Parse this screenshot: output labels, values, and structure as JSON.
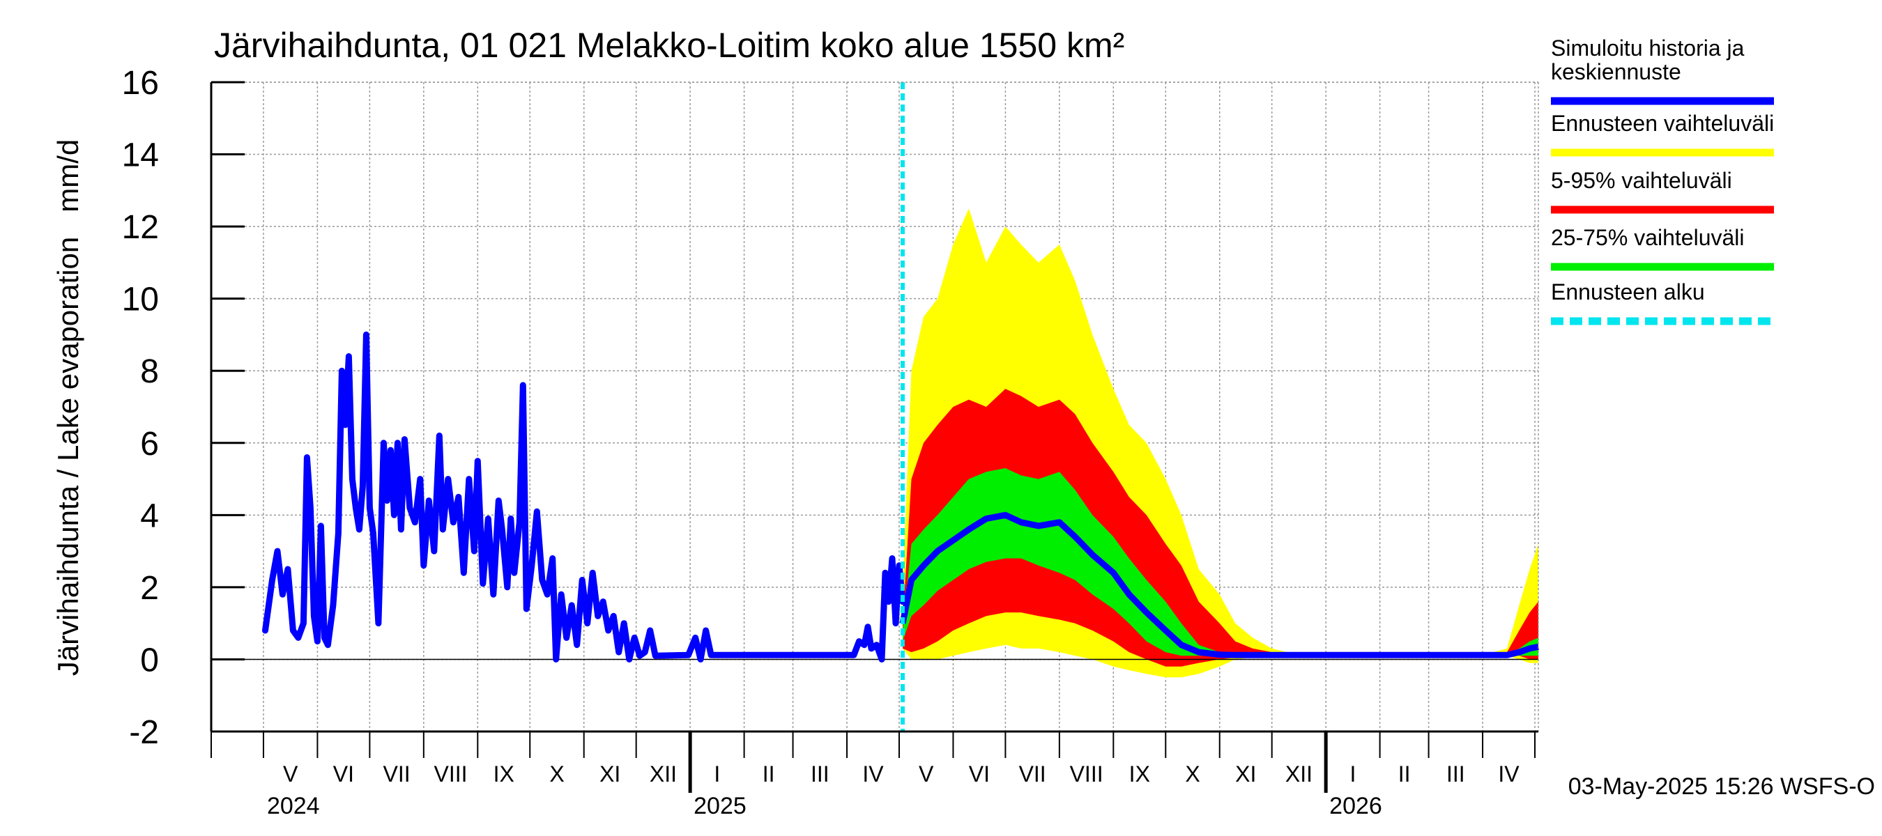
{
  "chart_data": {
    "type": "area",
    "title": "Järvihaihdunta, 01 021 Melakko-Loitim koko alue 1550 km²",
    "ylabel": "Järvihaihdunta / Lake evaporation   mm/d",
    "ylim": [
      -2,
      16
    ],
    "yticks": [
      "-2",
      "0",
      "2",
      "4",
      "6",
      "8",
      "10",
      "12",
      "14",
      "16"
    ],
    "x_range": [
      "2024-04-01",
      "2026-05-03"
    ],
    "forecast_start": "2025-05-03",
    "month_labels": [
      "V",
      "VI",
      "VII",
      "VIII",
      "IX",
      "X",
      "XI",
      "XII",
      "I",
      "II",
      "III",
      "IV",
      "V",
      "VI",
      "VII",
      "VIII",
      "IX",
      "X",
      "XI",
      "XII",
      "I",
      "II",
      "III",
      "IV"
    ],
    "year_labels": [
      "2024",
      "2025",
      "2026"
    ],
    "grid": true,
    "legend_position": "right",
    "timestamp": "03-May-2025 15:26 WSFS-O",
    "colors": {
      "median": "#0000ff",
      "range": "#ffff00",
      "p5_95": "#ff0000",
      "p25_75": "#00ee00",
      "forecast_start": "#00e5ee"
    },
    "legend": [
      {
        "label_lines": [
          "Simuloitu historia ja",
          "keskiennuste"
        ],
        "color": "#0000ff",
        "style": "solid"
      },
      {
        "label_lines": [
          "Ennusteen vaihteluväli"
        ],
        "color": "#ffff00",
        "style": "solid"
      },
      {
        "label_lines": [
          "5-95% vaihteluväli"
        ],
        "color": "#ff0000",
        "style": "solid"
      },
      {
        "label_lines": [
          "25-75% vaihteluväli"
        ],
        "color": "#00ee00",
        "style": "solid"
      },
      {
        "label_lines": [
          "Ennusteen alku"
        ],
        "color": "#00e5ee",
        "style": "dashed"
      }
    ],
    "history": {
      "name": "Simuloitu historia ja keskiennuste",
      "points": [
        [
          "2024-05-02",
          0.8
        ],
        [
          "2024-05-06",
          2.2
        ],
        [
          "2024-05-09",
          3.0
        ],
        [
          "2024-05-12",
          1.8
        ],
        [
          "2024-05-15",
          2.5
        ],
        [
          "2024-05-18",
          0.8
        ],
        [
          "2024-05-21",
          0.6
        ],
        [
          "2024-05-24",
          1.0
        ],
        [
          "2024-05-26",
          5.6
        ],
        [
          "2024-05-28",
          4.2
        ],
        [
          "2024-05-30",
          1.2
        ],
        [
          "2024-06-01",
          0.5
        ],
        [
          "2024-06-03",
          3.7
        ],
        [
          "2024-06-05",
          0.6
        ],
        [
          "2024-06-07",
          0.4
        ],
        [
          "2024-06-10",
          1.5
        ],
        [
          "2024-06-13",
          3.5
        ],
        [
          "2024-06-15",
          8.0
        ],
        [
          "2024-06-17",
          6.5
        ],
        [
          "2024-06-19",
          8.4
        ],
        [
          "2024-06-21",
          5.0
        ],
        [
          "2024-06-23",
          4.2
        ],
        [
          "2024-06-25",
          3.6
        ],
        [
          "2024-06-27",
          4.8
        ],
        [
          "2024-06-29",
          9.0
        ],
        [
          "2024-07-01",
          4.2
        ],
        [
          "2024-07-03",
          3.5
        ],
        [
          "2024-07-06",
          1.0
        ],
        [
          "2024-07-09",
          6.0
        ],
        [
          "2024-07-11",
          4.4
        ],
        [
          "2024-07-13",
          5.8
        ],
        [
          "2024-07-15",
          4.0
        ],
        [
          "2024-07-17",
          6.0
        ],
        [
          "2024-07-19",
          3.6
        ],
        [
          "2024-07-21",
          6.1
        ],
        [
          "2024-07-24",
          4.2
        ],
        [
          "2024-07-27",
          3.8
        ],
        [
          "2024-07-30",
          5.0
        ],
        [
          "2024-08-01",
          2.6
        ],
        [
          "2024-08-04",
          4.4
        ],
        [
          "2024-08-07",
          3.0
        ],
        [
          "2024-08-10",
          6.2
        ],
        [
          "2024-08-12",
          3.6
        ],
        [
          "2024-08-15",
          5.0
        ],
        [
          "2024-08-18",
          3.8
        ],
        [
          "2024-08-21",
          4.5
        ],
        [
          "2024-08-24",
          2.4
        ],
        [
          "2024-08-27",
          5.0
        ],
        [
          "2024-08-30",
          3.0
        ],
        [
          "2024-09-01",
          5.5
        ],
        [
          "2024-09-04",
          2.1
        ],
        [
          "2024-09-07",
          3.9
        ],
        [
          "2024-09-10",
          1.8
        ],
        [
          "2024-09-13",
          4.4
        ],
        [
          "2024-09-15",
          3.6
        ],
        [
          "2024-09-18",
          2.0
        ],
        [
          "2024-09-20",
          3.9
        ],
        [
          "2024-09-22",
          2.4
        ],
        [
          "2024-09-25",
          3.8
        ],
        [
          "2024-09-27",
          7.6
        ],
        [
          "2024-09-29",
          1.4
        ],
        [
          "2024-10-02",
          2.6
        ],
        [
          "2024-10-05",
          4.1
        ],
        [
          "2024-10-08",
          2.2
        ],
        [
          "2024-10-11",
          1.8
        ],
        [
          "2024-10-14",
          2.8
        ],
        [
          "2024-10-16",
          0.0
        ],
        [
          "2024-10-19",
          1.8
        ],
        [
          "2024-10-22",
          0.6
        ],
        [
          "2024-10-25",
          1.5
        ],
        [
          "2024-10-28",
          0.4
        ],
        [
          "2024-10-31",
          2.2
        ],
        [
          "2024-11-03",
          1.0
        ],
        [
          "2024-11-06",
          2.4
        ],
        [
          "2024-11-09",
          1.2
        ],
        [
          "2024-11-12",
          1.6
        ],
        [
          "2024-11-15",
          0.8
        ],
        [
          "2024-11-18",
          1.2
        ],
        [
          "2024-11-21",
          0.2
        ],
        [
          "2024-11-24",
          1.0
        ],
        [
          "2024-11-27",
          0.0
        ],
        [
          "2024-11-30",
          0.6
        ],
        [
          "2024-12-03",
          0.1
        ],
        [
          "2024-12-06",
          0.2
        ],
        [
          "2024-12-09",
          0.8
        ],
        [
          "2024-12-12",
          0.1
        ],
        [
          "2024-12-31",
          0.12
        ],
        [
          "2025-01-04",
          0.6
        ],
        [
          "2025-01-07",
          0.0
        ],
        [
          "2025-01-10",
          0.8
        ],
        [
          "2025-01-13",
          0.12
        ],
        [
          "2025-04-05",
          0.12
        ],
        [
          "2025-04-08",
          0.5
        ],
        [
          "2025-04-11",
          0.4
        ],
        [
          "2025-04-13",
          0.9
        ],
        [
          "2025-04-15",
          0.3
        ],
        [
          "2025-04-18",
          0.4
        ],
        [
          "2025-04-21",
          0.0
        ],
        [
          "2025-04-23",
          2.4
        ],
        [
          "2025-04-25",
          1.6
        ],
        [
          "2025-04-27",
          2.8
        ],
        [
          "2025-04-29",
          1.0
        ],
        [
          "2025-05-01",
          2.6
        ],
        [
          "2025-05-03",
          1.6
        ]
      ]
    },
    "forecast_dates": [
      "2025-05-03",
      "2025-05-08",
      "2025-05-15",
      "2025-05-23",
      "2025-06-01",
      "2025-06-10",
      "2025-06-20",
      "2025-07-01",
      "2025-07-10",
      "2025-07-20",
      "2025-08-01",
      "2025-08-10",
      "2025-08-20",
      "2025-09-01",
      "2025-09-10",
      "2025-09-20",
      "2025-10-01",
      "2025-10-10",
      "2025-10-20",
      "2025-11-01",
      "2025-11-10",
      "2025-11-20",
      "2025-12-01",
      "2025-12-10",
      "2025-12-20",
      "2026-01-01",
      "2026-02-01",
      "2026-03-01",
      "2026-04-01",
      "2026-04-15",
      "2026-04-22",
      "2026-04-28",
      "2026-05-03"
    ],
    "series": [
      {
        "name": "Ennusteen vaihteluväli",
        "upper": [
          2.0,
          8.0,
          9.5,
          10.0,
          11.5,
          12.5,
          11.0,
          12.0,
          11.5,
          11.0,
          11.5,
          10.5,
          9.0,
          7.5,
          6.5,
          6.0,
          5.0,
          4.0,
          2.5,
          1.8,
          1.0,
          0.6,
          0.3,
          0.2,
          0.12,
          0.12,
          0.12,
          0.12,
          0.12,
          0.3,
          1.5,
          2.5,
          3.2
        ],
        "lower": [
          0.3,
          0.0,
          0.0,
          0.0,
          0.1,
          0.2,
          0.3,
          0.4,
          0.3,
          0.3,
          0.2,
          0.1,
          0.0,
          -0.2,
          -0.3,
          -0.4,
          -0.5,
          -0.5,
          -0.4,
          -0.2,
          0.0,
          0.05,
          0.1,
          0.1,
          0.1,
          0.1,
          0.1,
          0.1,
          0.1,
          0.1,
          0.0,
          -0.1,
          -0.1
        ]
      },
      {
        "name": "5-95% vaihteluväli",
        "upper": [
          1.0,
          5.0,
          6.0,
          6.5,
          7.0,
          7.2,
          7.0,
          7.5,
          7.3,
          7.0,
          7.2,
          6.8,
          6.0,
          5.2,
          4.5,
          4.0,
          3.2,
          2.6,
          1.6,
          1.0,
          0.5,
          0.3,
          0.2,
          0.15,
          0.12,
          0.12,
          0.12,
          0.12,
          0.12,
          0.2,
          0.8,
          1.3,
          1.6
        ],
        "lower": [
          0.3,
          0.2,
          0.3,
          0.5,
          0.8,
          1.0,
          1.2,
          1.3,
          1.3,
          1.2,
          1.1,
          1.0,
          0.8,
          0.5,
          0.2,
          0.0,
          -0.2,
          -0.2,
          -0.1,
          0.0,
          0.05,
          0.1,
          0.1,
          0.1,
          0.1,
          0.1,
          0.1,
          0.1,
          0.1,
          0.1,
          0.1,
          0.0,
          0.0
        ]
      },
      {
        "name": "25-75% vaihteluväli",
        "upper": [
          0.8,
          3.2,
          3.6,
          4.0,
          4.5,
          5.0,
          5.2,
          5.3,
          5.1,
          5.0,
          5.2,
          4.7,
          4.0,
          3.4,
          2.8,
          2.2,
          1.6,
          1.0,
          0.4,
          0.2,
          0.15,
          0.12,
          0.12,
          0.12,
          0.12,
          0.12,
          0.12,
          0.12,
          0.12,
          0.15,
          0.3,
          0.5,
          0.6
        ],
        "lower": [
          0.5,
          1.2,
          1.5,
          1.9,
          2.2,
          2.5,
          2.7,
          2.8,
          2.8,
          2.6,
          2.4,
          2.2,
          1.8,
          1.4,
          1.0,
          0.5,
          0.2,
          0.1,
          0.1,
          0.1,
          0.1,
          0.1,
          0.1,
          0.1,
          0.1,
          0.1,
          0.1,
          0.1,
          0.1,
          0.1,
          0.1,
          0.1,
          0.1
        ]
      },
      {
        "name": "keskiennuste",
        "values": [
          1.0,
          2.2,
          2.6,
          3.0,
          3.3,
          3.6,
          3.9,
          4.0,
          3.8,
          3.7,
          3.8,
          3.4,
          2.9,
          2.4,
          1.8,
          1.3,
          0.8,
          0.4,
          0.2,
          0.13,
          0.12,
          0.12,
          0.12,
          0.12,
          0.12,
          0.12,
          0.12,
          0.12,
          0.12,
          0.12,
          0.2,
          0.3,
          0.35
        ]
      }
    ]
  }
}
